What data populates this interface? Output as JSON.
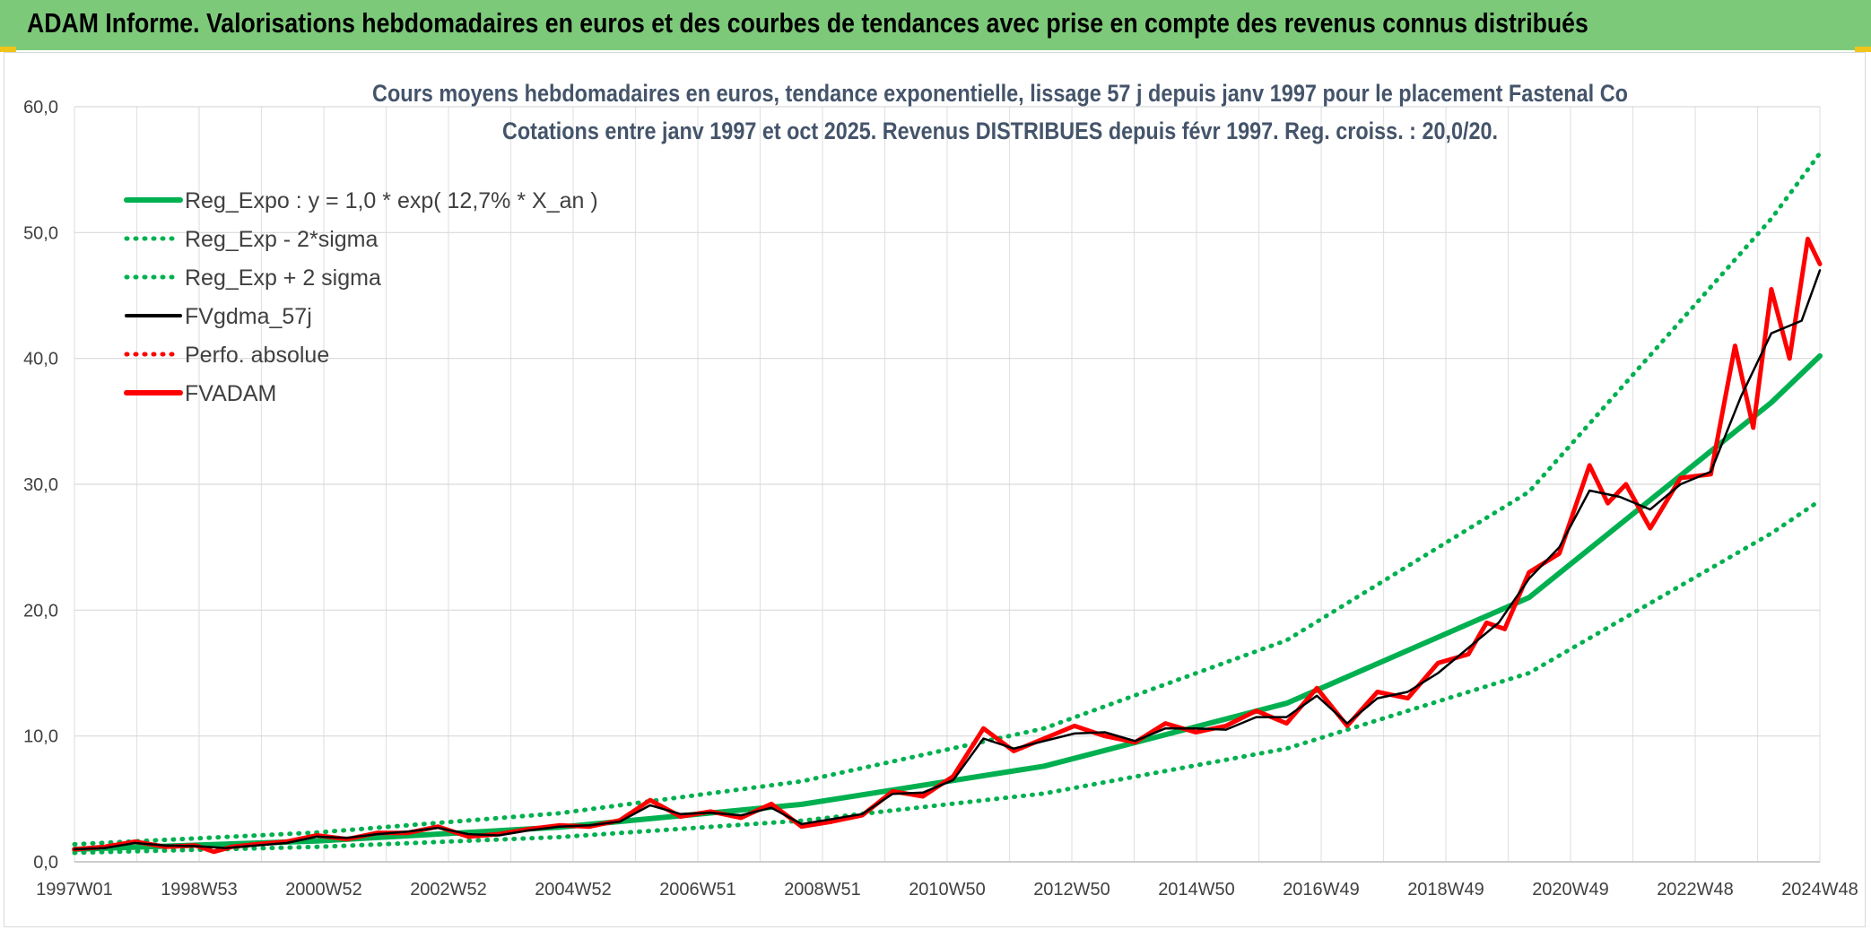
{
  "header": {
    "title": "ADAM Informe. Valorisations hebdomadaires en euros et des courbes de tendances avec prise en compte des revenus connus distribués"
  },
  "chart_data": {
    "type": "line",
    "title": "Cours moyens hebdomadaires en euros, tendance exponentielle, lissage 57 j depuis janv 1997 pour le placement Fastenal Co",
    "subtitle": "Cotations entre janv 1997 et oct 2025. Revenus DISTRIBUES depuis févr 1997. Reg. croiss. : 20,0/20.",
    "x_tick_labels": [
      "1997W01",
      "1998W53",
      "2000W52",
      "2002W52",
      "2004W52",
      "2006W51",
      "2008W51",
      "2010W50",
      "2012W50",
      "2014W50",
      "2016W49",
      "2018W49",
      "2020W49",
      "2022W48",
      "2024W48"
    ],
    "x_range_years": [
      1997.0,
      2025.8
    ],
    "y_tick_labels": [
      "0,0",
      "10,0",
      "20,0",
      "30,0",
      "40,0",
      "50,0",
      "60,0"
    ],
    "ylim": [
      0,
      60
    ],
    "grid": true,
    "legend_position": "top-left",
    "series": [
      {
        "name": "Reg_Expo : y = 1,0 * exp( 12,7% *  X_an )",
        "style": "solid",
        "color": "#00b050",
        "points": [
          [
            1997.0,
            1.0
          ],
          [
            2001.0,
            1.66
          ],
          [
            2005.0,
            2.75
          ],
          [
            2009.0,
            4.57
          ],
          [
            2013.0,
            7.6
          ],
          [
            2017.0,
            12.6
          ],
          [
            2021.0,
            21.0
          ],
          [
            2025.0,
            36.5
          ],
          [
            2025.8,
            40.2
          ]
        ]
      },
      {
        "name": "Reg_Exp - 2*sigma",
        "style": "dotted",
        "color": "#00b050",
        "points": [
          [
            1997.0,
            0.72
          ],
          [
            2001.0,
            1.19
          ],
          [
            2005.0,
            1.97
          ],
          [
            2009.0,
            3.27
          ],
          [
            2013.0,
            5.43
          ],
          [
            2017.0,
            9.0
          ],
          [
            2021.0,
            15.0
          ],
          [
            2025.0,
            26.1
          ],
          [
            2025.8,
            28.7
          ]
        ]
      },
      {
        "name": "Reg_Exp + 2 sigma",
        "style": "dotted",
        "color": "#00b050",
        "points": [
          [
            1997.0,
            1.4
          ],
          [
            2001.0,
            2.33
          ],
          [
            2005.0,
            3.86
          ],
          [
            2009.0,
            6.4
          ],
          [
            2013.0,
            10.6
          ],
          [
            2017.0,
            17.6
          ],
          [
            2021.0,
            29.4
          ],
          [
            2025.0,
            51.1
          ],
          [
            2025.8,
            56.3
          ]
        ]
      },
      {
        "name": "FVgdma_57j",
        "style": "solid",
        "color": "#000000",
        "points": [
          [
            1997.0,
            1.0
          ],
          [
            1997.5,
            1.1
          ],
          [
            1998.0,
            1.5
          ],
          [
            1998.5,
            1.3
          ],
          [
            1999.0,
            1.25
          ],
          [
            1999.5,
            1.1
          ],
          [
            2000.0,
            1.3
          ],
          [
            2000.5,
            1.5
          ],
          [
            2001.0,
            2.0
          ],
          [
            2001.5,
            1.9
          ],
          [
            2002.0,
            2.2
          ],
          [
            2002.5,
            2.4
          ],
          [
            2003.0,
            2.7
          ],
          [
            2003.5,
            2.2
          ],
          [
            2004.0,
            2.1
          ],
          [
            2004.5,
            2.5
          ],
          [
            2005.0,
            2.8
          ],
          [
            2005.5,
            2.9
          ],
          [
            2006.0,
            3.2
          ],
          [
            2006.5,
            4.5
          ],
          [
            2007.0,
            3.8
          ],
          [
            2007.5,
            3.9
          ],
          [
            2008.0,
            3.7
          ],
          [
            2008.5,
            4.3
          ],
          [
            2009.0,
            3.0
          ],
          [
            2009.5,
            3.4
          ],
          [
            2010.0,
            3.8
          ],
          [
            2010.5,
            5.4
          ],
          [
            2011.0,
            5.5
          ],
          [
            2011.5,
            6.5
          ],
          [
            2012.0,
            9.8
          ],
          [
            2012.5,
            9.0
          ],
          [
            2013.0,
            9.6
          ],
          [
            2013.5,
            10.2
          ],
          [
            2014.0,
            10.3
          ],
          [
            2014.5,
            9.6
          ],
          [
            2015.0,
            10.6
          ],
          [
            2015.5,
            10.6
          ],
          [
            2016.0,
            10.5
          ],
          [
            2016.5,
            11.5
          ],
          [
            2017.0,
            11.5
          ],
          [
            2017.5,
            13.2
          ],
          [
            2018.0,
            11.0
          ],
          [
            2018.5,
            13.0
          ],
          [
            2019.0,
            13.5
          ],
          [
            2019.5,
            15.0
          ],
          [
            2020.0,
            17.0
          ],
          [
            2020.5,
            19.0
          ],
          [
            2021.0,
            22.5
          ],
          [
            2021.5,
            25.0
          ],
          [
            2022.0,
            29.5
          ],
          [
            2022.5,
            29.0
          ],
          [
            2023.0,
            28.0
          ],
          [
            2023.5,
            30.0
          ],
          [
            2024.0,
            31.0
          ],
          [
            2024.5,
            37.0
          ],
          [
            2025.0,
            42.0
          ],
          [
            2025.5,
            43.0
          ],
          [
            2025.8,
            47.0
          ]
        ]
      },
      {
        "name": "Perfo. absolue",
        "style": "dotted",
        "color": "#ff0000",
        "points": []
      },
      {
        "name": "FVADAM",
        "style": "solid",
        "color": "#ff0000",
        "points": [
          [
            1997.0,
            1.0
          ],
          [
            1997.5,
            1.2
          ],
          [
            1998.0,
            1.6
          ],
          [
            1998.5,
            1.2
          ],
          [
            1999.0,
            1.3
          ],
          [
            1999.3,
            0.8
          ],
          [
            1999.6,
            1.2
          ],
          [
            2000.0,
            1.4
          ],
          [
            2000.5,
            1.6
          ],
          [
            2001.0,
            2.1
          ],
          [
            2001.5,
            1.8
          ],
          [
            2002.0,
            2.3
          ],
          [
            2002.5,
            2.3
          ],
          [
            2003.0,
            2.8
          ],
          [
            2003.5,
            2.0
          ],
          [
            2004.0,
            2.2
          ],
          [
            2004.5,
            2.6
          ],
          [
            2005.0,
            2.9
          ],
          [
            2005.5,
            2.8
          ],
          [
            2006.0,
            3.3
          ],
          [
            2006.5,
            4.9
          ],
          [
            2007.0,
            3.6
          ],
          [
            2007.5,
            4.0
          ],
          [
            2008.0,
            3.5
          ],
          [
            2008.5,
            4.6
          ],
          [
            2009.0,
            2.8
          ],
          [
            2009.5,
            3.2
          ],
          [
            2010.0,
            3.7
          ],
          [
            2010.5,
            5.6
          ],
          [
            2011.0,
            5.2
          ],
          [
            2011.5,
            6.8
          ],
          [
            2012.0,
            10.6
          ],
          [
            2012.5,
            8.8
          ],
          [
            2013.0,
            9.8
          ],
          [
            2013.5,
            10.8
          ],
          [
            2014.0,
            10.0
          ],
          [
            2014.5,
            9.5
          ],
          [
            2015.0,
            11.0
          ],
          [
            2015.5,
            10.3
          ],
          [
            2016.0,
            10.8
          ],
          [
            2016.5,
            12.0
          ],
          [
            2017.0,
            11.0
          ],
          [
            2017.5,
            13.8
          ],
          [
            2018.0,
            10.8
          ],
          [
            2018.5,
            13.5
          ],
          [
            2019.0,
            13.0
          ],
          [
            2019.5,
            15.8
          ],
          [
            2020.0,
            16.5
          ],
          [
            2020.3,
            19.0
          ],
          [
            2020.6,
            18.5
          ],
          [
            2021.0,
            23.0
          ],
          [
            2021.5,
            24.5
          ],
          [
            2022.0,
            31.5
          ],
          [
            2022.3,
            28.5
          ],
          [
            2022.6,
            30.0
          ],
          [
            2023.0,
            26.5
          ],
          [
            2023.5,
            30.5
          ],
          [
            2024.0,
            30.8
          ],
          [
            2024.4,
            41.0
          ],
          [
            2024.7,
            34.5
          ],
          [
            2025.0,
            45.5
          ],
          [
            2025.3,
            40.0
          ],
          [
            2025.6,
            49.5
          ],
          [
            2025.8,
            47.5
          ]
        ]
      }
    ]
  }
}
